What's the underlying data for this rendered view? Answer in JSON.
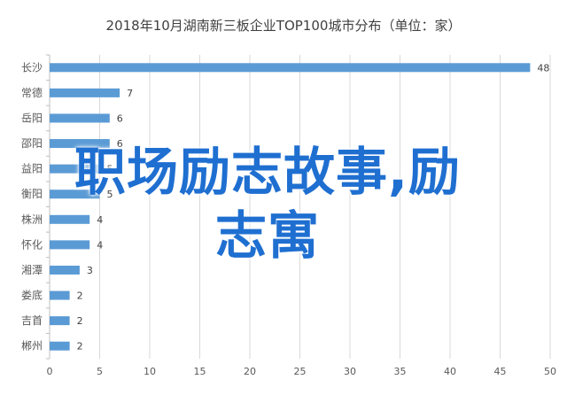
{
  "chart_data": {
    "type": "bar",
    "orientation": "horizontal",
    "title": "2018年10月湖南新三板企业TOP100城市分布（单位：家）",
    "categories": [
      "长沙",
      "常德",
      "岳阳",
      "邵阳",
      "益阳",
      "衡阳",
      "株洲",
      "怀化",
      "湘潭",
      "娄底",
      "吉首",
      "郴州"
    ],
    "values": [
      48,
      7,
      6,
      6,
      5,
      5,
      4,
      4,
      3,
      2,
      2,
      2
    ],
    "xlim": [
      0,
      50
    ],
    "x_ticks": [
      0,
      5,
      10,
      15,
      20,
      25,
      30,
      35,
      40,
      45,
      50
    ],
    "grid": true,
    "bar_color": "#5b9bd5"
  },
  "overlay": {
    "line1": "职场励志故事,励",
    "line2": "志寓"
  }
}
